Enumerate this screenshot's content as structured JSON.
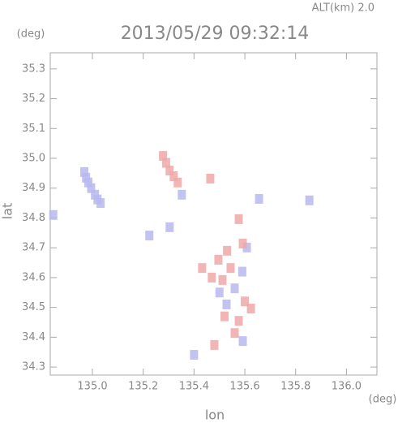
{
  "chart_data": {
    "type": "scatter",
    "title": "2013/05/29 09:32:14",
    "subtitle": "ALT(km) 2.0",
    "x_label": "lon",
    "y_label": "lat",
    "x_unit": "(deg)",
    "y_unit": "(deg)",
    "xlim": [
      134.834,
      136.12
    ],
    "ylim": [
      34.273,
      35.354
    ],
    "xticks": [
      {
        "value": 135,
        "label": "135.0"
      },
      135.2,
      135.4,
      135.6,
      135.8,
      {
        "value": 136,
        "label": "136.0"
      }
    ],
    "yticks": [
      34.3,
      34.4,
      34.5,
      34.6,
      34.7,
      34.8,
      34.9,
      {
        "value": 35,
        "label": "35.0"
      },
      35.1,
      35.2,
      35.3
    ],
    "series": [
      {
        "color": "#b8b8f0",
        "x": [
          134.968,
          134.975,
          134.984,
          134.995,
          135.01,
          135.02,
          135.032,
          134.846,
          135.352,
          135.224,
          135.304,
          135.608,
          135.528,
          135.592,
          135.4,
          135.656,
          135.56,
          135.854,
          135.5,
          135.59
        ],
        "values": [
          34.954,
          34.935,
          34.919,
          34.9,
          34.878,
          34.862,
          34.85,
          34.81,
          34.878,
          34.741,
          34.769,
          34.701,
          34.51,
          34.387,
          34.341,
          34.864,
          34.564,
          34.859,
          34.55,
          34.62
        ]
      },
      {
        "color": "#f0a8a8",
        "x": [
          135.278,
          135.29,
          135.304,
          135.32,
          135.336,
          135.464,
          135.576,
          135.496,
          135.544,
          135.592,
          135.512,
          135.624,
          135.576,
          135.48,
          135.56,
          135.432,
          135.47,
          135.53,
          135.6,
          135.52
        ],
        "values": [
          35.008,
          34.985,
          34.959,
          34.94,
          34.919,
          34.932,
          34.796,
          34.66,
          34.632,
          34.714,
          34.592,
          34.496,
          34.455,
          34.374,
          34.414,
          34.632,
          34.6,
          34.69,
          34.52,
          34.47
        ]
      }
    ]
  }
}
